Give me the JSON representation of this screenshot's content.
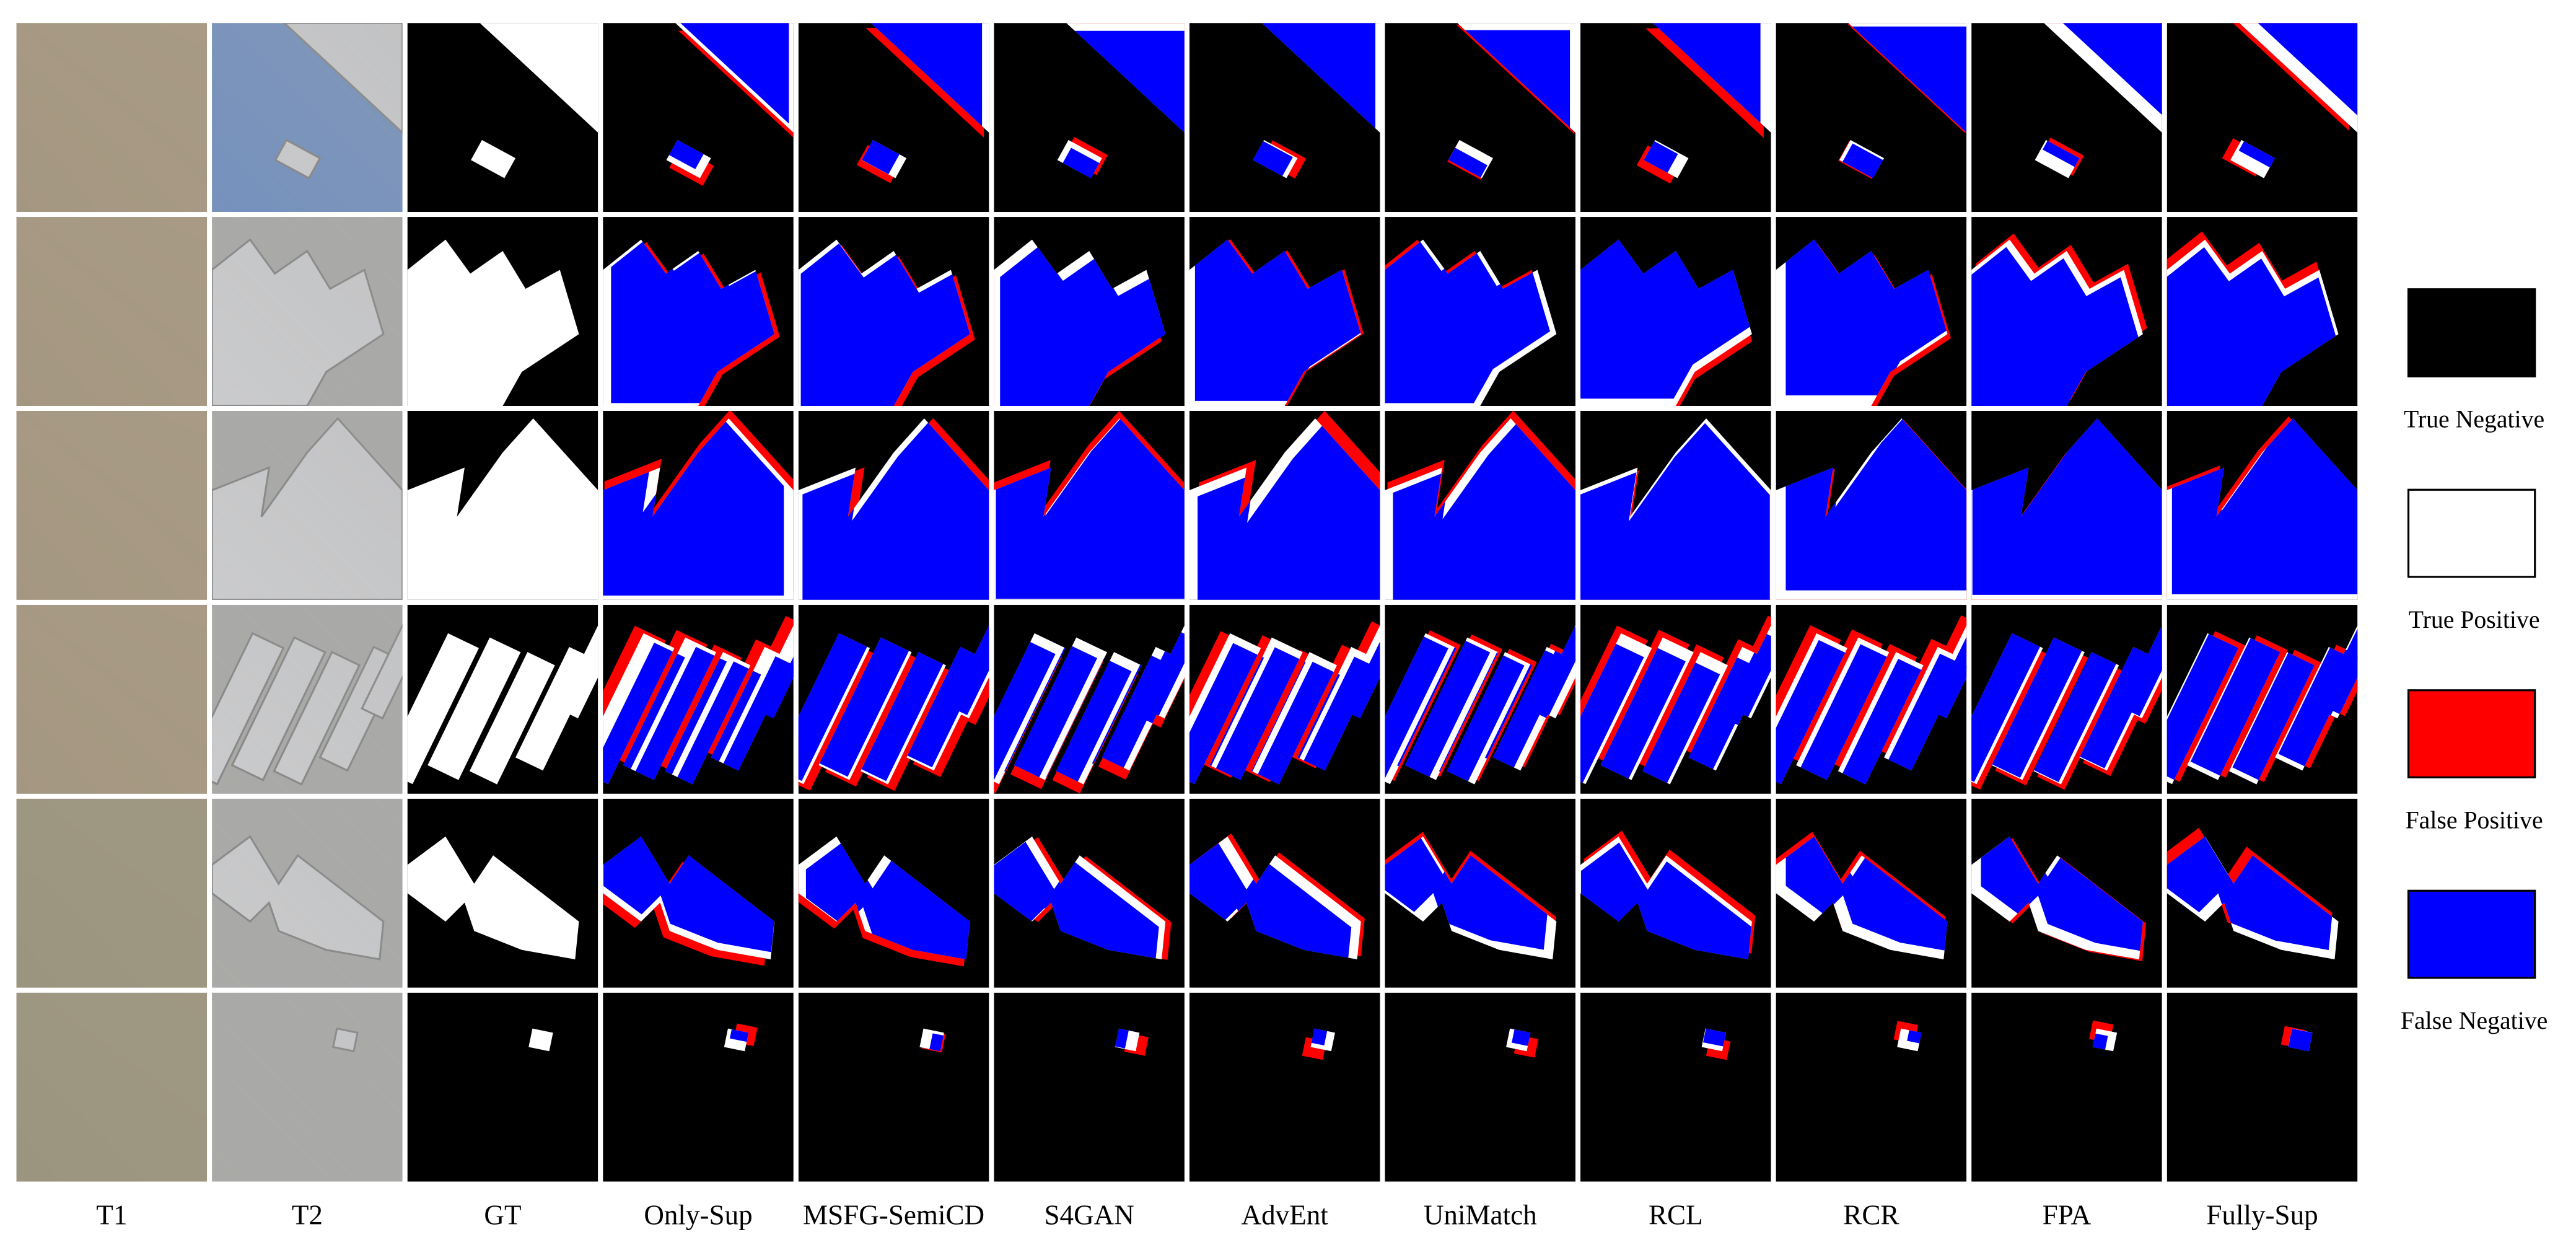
{
  "columns": [
    "T1",
    "T2",
    "GT",
    "Only-Sup",
    "MSFG-SemiCD",
    "S4GAN",
    "AdvEnt",
    "UniMatch",
    "RCL",
    "RCR",
    "FPA",
    "Fully-Sup"
  ],
  "legend": [
    "True Negative",
    "True Positive",
    "False Positive",
    "False Negative"
  ]
}
